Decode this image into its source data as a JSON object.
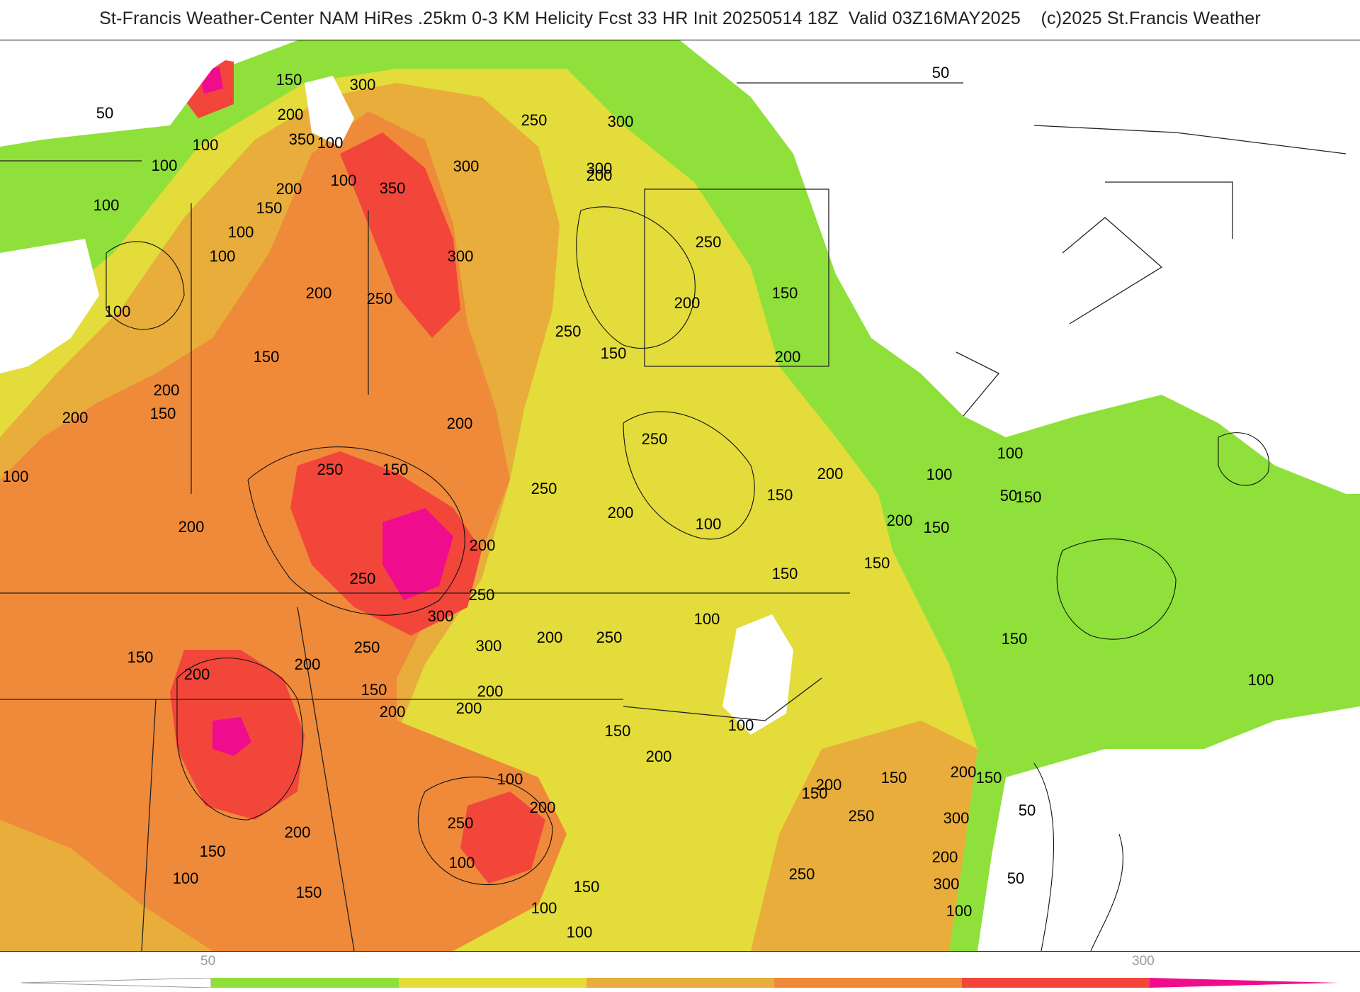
{
  "header": {
    "title": "St-Francis Weather-Center NAM HiRes .25km 0-3 KM Helicity Fcst 33 HR Init 20250514 18Z  Valid 03Z16MAY2025    (c)2025 St.Francis Weather"
  },
  "legend": {
    "tick_labels": [
      "50",
      "300"
    ],
    "colors": [
      "#8fe03a",
      "#e3dc3a",
      "#e8ad3a",
      "#ee8a3a",
      "#f2463a",
      "#ef0d8e"
    ]
  },
  "map": {
    "contour_labels": [
      "300",
      "150",
      "200",
      "350",
      "100",
      "50",
      "300",
      "250",
      "300",
      "300",
      "200",
      "50",
      "100",
      "100",
      "100",
      "150",
      "100",
      "200",
      "350",
      "100",
      "100",
      "250",
      "300",
      "200",
      "250",
      "150",
      "100",
      "200",
      "250",
      "150",
      "150",
      "200",
      "200",
      "150",
      "200",
      "200",
      "250",
      "150",
      "100",
      "200",
      "250",
      "200",
      "150",
      "200",
      "150",
      "100",
      "150",
      "250",
      "200",
      "200",
      "250",
      "250",
      "300",
      "200",
      "250",
      "150",
      "100",
      "250",
      "200",
      "150",
      "100",
      "150",
      "200",
      "200",
      "300",
      "200",
      "150",
      "200",
      "150",
      "100",
      "200",
      "150",
      "100",
      "200",
      "250",
      "250",
      "200",
      "150",
      "100",
      "100",
      "200",
      "250",
      "150",
      "200",
      "150",
      "300",
      "200",
      "300",
      "100",
      "150",
      "150",
      "100",
      "100",
      "50",
      "50",
      "50",
      "150",
      "100",
      "100"
    ],
    "colors": {
      "green": "#8fe03a",
      "yellow": "#e3dc3a",
      "gold": "#e8ad3a",
      "orange": "#ee8a3a",
      "red": "#f2463a",
      "magenta": "#ef0d8e",
      "background": "#ffffff"
    }
  }
}
